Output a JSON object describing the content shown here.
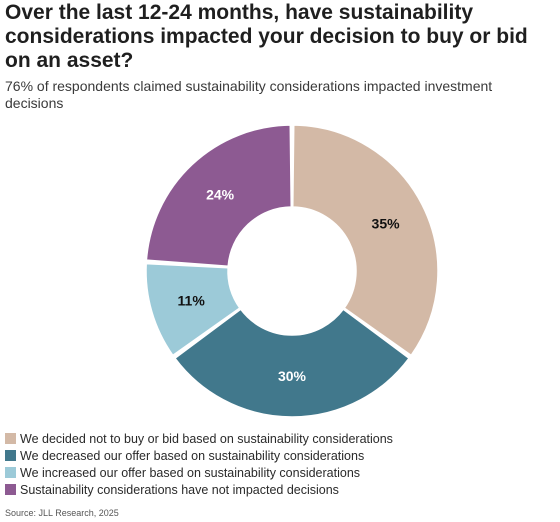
{
  "title": "Over the last 12-24 months, have sustainability considerations impacted your decision to buy or bid on an asset?",
  "subtitle": "76% of respondents claimed sustainability considerations impacted investment decisions",
  "source": "Source: JLL Research, 2025",
  "chart_data": {
    "type": "pie",
    "donut": true,
    "title": "",
    "slices": [
      {
        "label": "We decided not to buy or bid based on sustainability considerations",
        "value": 35,
        "display": "35%",
        "color": "#d3b9a6",
        "label_color": "#111111"
      },
      {
        "label": "We decreased our offer based on sustainability considerations",
        "value": 30,
        "display": "30%",
        "color": "#41788c",
        "label_color": "#ffffff"
      },
      {
        "label": "We increased our offer based on sustainability considerations",
        "value": 11,
        "display": "11%",
        "color": "#9ccad8",
        "label_color": "#111111"
      },
      {
        "label": "Sustainability considerations have not impacted decisions",
        "value": 24,
        "display": "24%",
        "color": "#8d5a92",
        "label_color": "#ffffff"
      }
    ],
    "legend": "bottom-left"
  }
}
